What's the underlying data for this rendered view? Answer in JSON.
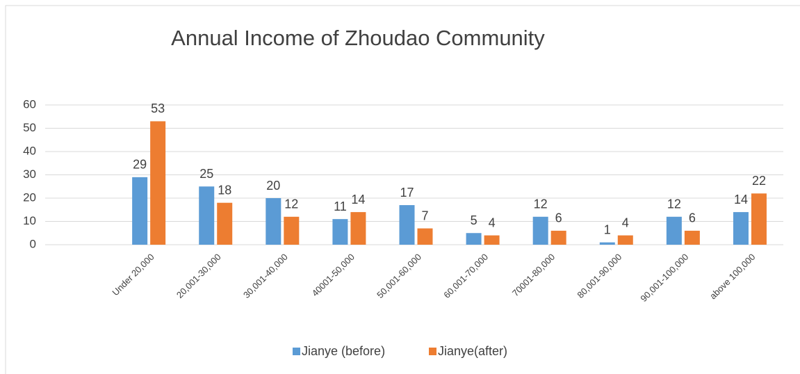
{
  "chart_data": {
    "type": "bar",
    "title": "Annual Income of Zhoudao Community",
    "categories": [
      null,
      "Under 20,000",
      "20,001-30,000",
      "30,001-40,000",
      "40001-50,000",
      "50,001-60,000",
      "60,001-70,000",
      "70001-80,000",
      "80,001-90,000",
      "90,001-100,000",
      "above 100,000"
    ],
    "series": [
      {
        "name": "Jianye (before)",
        "color": "#5b9bd5",
        "values": [
          null,
          29,
          25,
          20,
          11,
          17,
          5,
          12,
          1,
          12,
          14
        ]
      },
      {
        "name": "Jianye(after)",
        "color": "#ed7d31",
        "values": [
          null,
          53,
          18,
          12,
          14,
          7,
          4,
          6,
          4,
          6,
          22
        ]
      }
    ],
    "ylim": [
      0,
      60
    ],
    "yticks": [
      0,
      10,
      20,
      30,
      40,
      50,
      60
    ],
    "grid": true,
    "legend": "bottom"
  }
}
